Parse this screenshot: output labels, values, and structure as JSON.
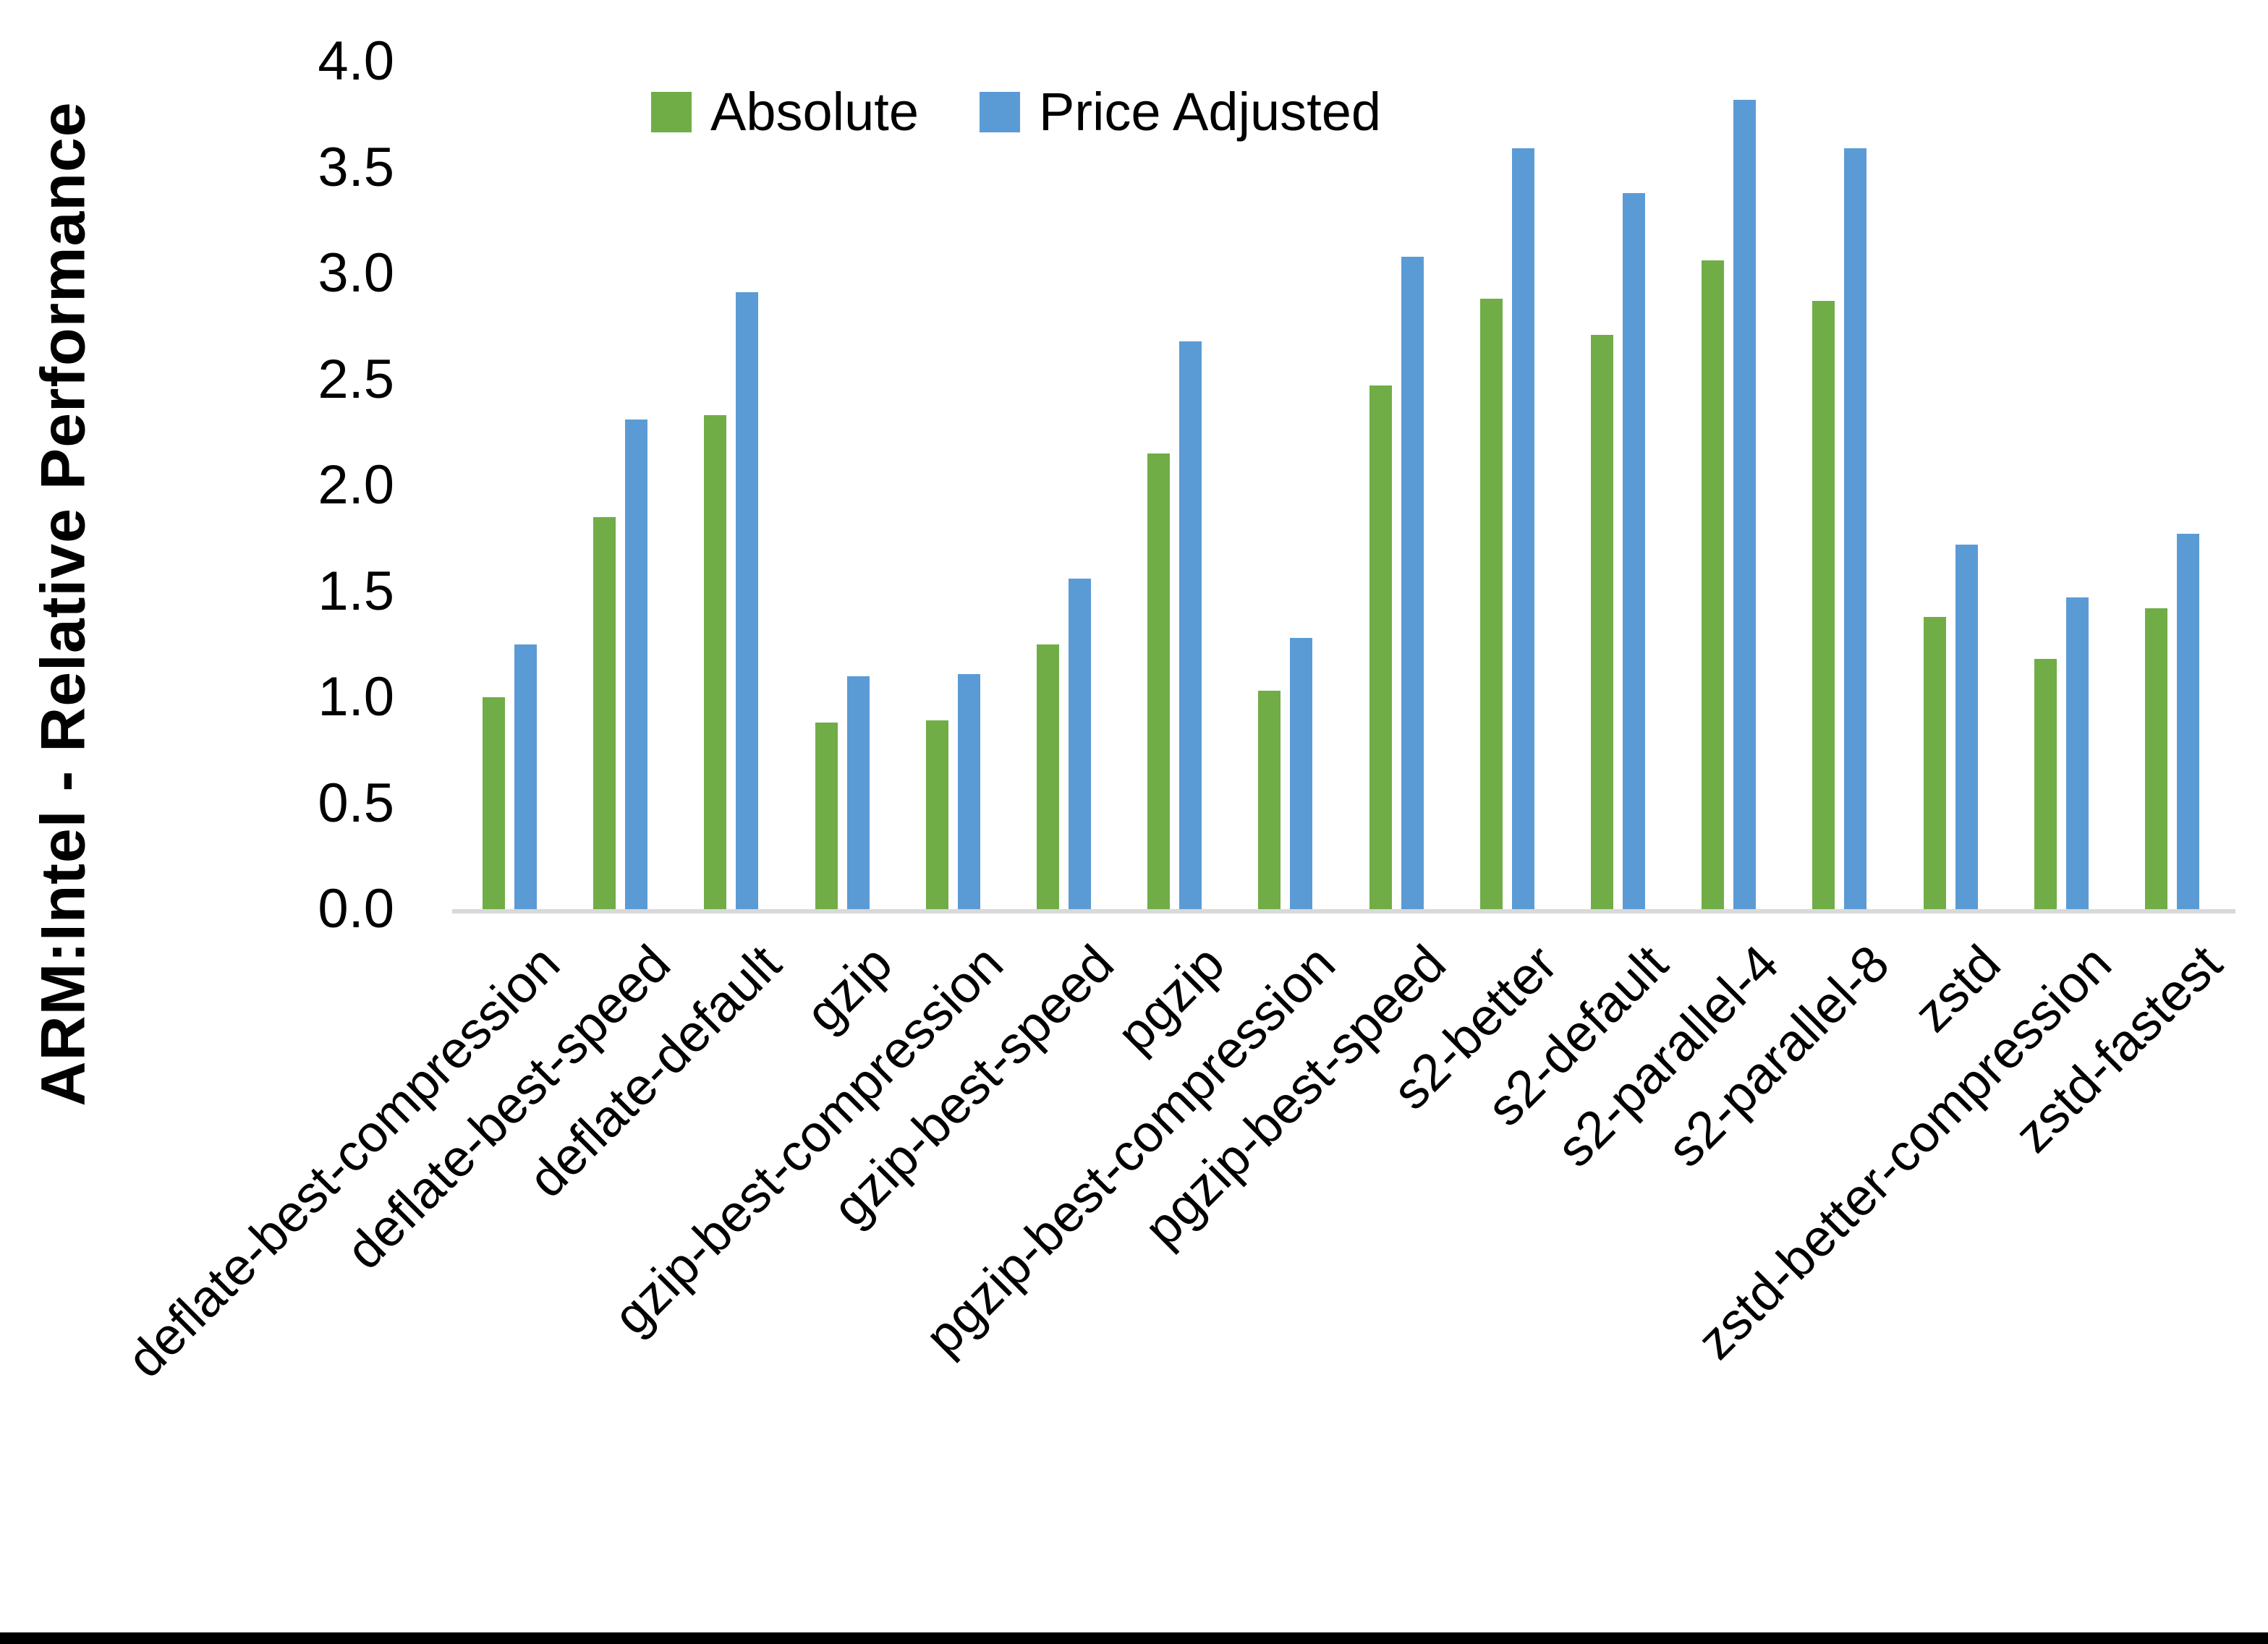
{
  "chart_data": {
    "type": "bar",
    "title": "",
    "xlabel": "",
    "ylabel": "ARM:Intel - Relative Performance",
    "ylim": [
      0,
      4
    ],
    "ytick_labels": [
      "0.0",
      "0.5",
      "1.0",
      "1.5",
      "2.0",
      "2.5",
      "3.0",
      "3.5",
      "4.0"
    ],
    "grid": "off",
    "legend_position": "top-center",
    "axis_line_color": "#d9d9d9",
    "categories": [
      "deflate-best-compression",
      "deflate-best-speed",
      "deflate-default",
      "gzip",
      "gzip-best-compression",
      "gzip-best-speed",
      "pgzip",
      "pgzip-best-compression",
      "pgzip-best-speed",
      "s2-better",
      "s2-default",
      "s2-parallel-4",
      "s2-parallel-8",
      "zstd",
      "zstd-better-compression",
      "zstd-fastest"
    ],
    "series": [
      {
        "name": "Absolute",
        "color": "#70AD47",
        "values": [
          1.0,
          1.85,
          2.33,
          0.88,
          0.89,
          1.25,
          2.15,
          1.03,
          2.47,
          2.88,
          2.71,
          3.06,
          2.87,
          1.38,
          1.18,
          1.42
        ]
      },
      {
        "name": "Price Adjusted",
        "color": "#5B9BD5",
        "values": [
          1.25,
          2.31,
          2.91,
          1.1,
          1.11,
          1.56,
          2.68,
          1.28,
          3.08,
          3.59,
          3.38,
          3.82,
          3.59,
          1.72,
          1.47,
          1.77
        ]
      }
    ]
  }
}
